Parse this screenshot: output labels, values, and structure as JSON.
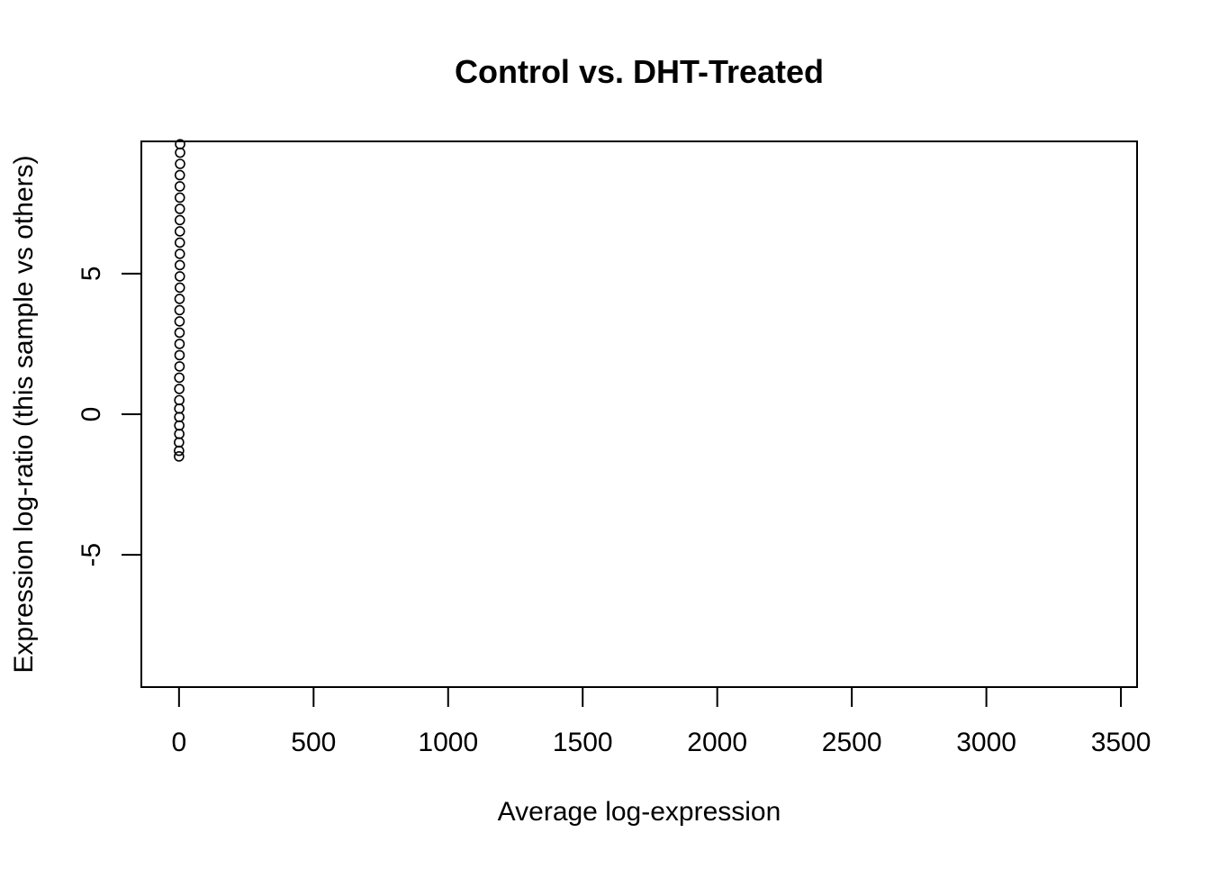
{
  "chart_data": {
    "type": "scatter",
    "title": "Control vs. DHT-Treated",
    "xlabel": "Average log-expression",
    "ylabel": "Expression log-ratio (this sample vs others)",
    "xlim": [
      -140,
      3560
    ],
    "ylim": [
      -9.7,
      9.7
    ],
    "x_ticks": [
      0,
      500,
      1000,
      1500,
      2000,
      2500,
      3000,
      3500
    ],
    "x_tick_labels": [
      "0",
      "500",
      "1000",
      "1500",
      "2000",
      "2500",
      "3000",
      "3500"
    ],
    "y_ticks": [
      -5,
      0,
      5
    ],
    "y_tick_labels": [
      "-5",
      "0",
      "5"
    ],
    "grid": false,
    "legend": "none",
    "series": [
      {
        "color": "#000000",
        "points": [
          {
            "x": 0,
            "y": -1.5
          },
          {
            "x": 0,
            "y": -1.3
          },
          {
            "x": 0,
            "y": -1.0
          },
          {
            "x": 1,
            "y": -0.7
          },
          {
            "x": 1,
            "y": -0.4
          },
          {
            "x": 1,
            "y": -0.1
          },
          {
            "x": 1,
            "y": 0.2
          },
          {
            "x": 1,
            "y": 0.5
          },
          {
            "x": 1,
            "y": 0.9
          },
          {
            "x": 1,
            "y": 1.3
          },
          {
            "x": 2,
            "y": 1.7
          },
          {
            "x": 2,
            "y": 2.1
          },
          {
            "x": 2,
            "y": 2.5
          },
          {
            "x": 2,
            "y": 2.9
          },
          {
            "x": 2,
            "y": 3.3
          },
          {
            "x": 2,
            "y": 3.7
          },
          {
            "x": 2,
            "y": 4.1
          },
          {
            "x": 3,
            "y": 4.5
          },
          {
            "x": 3,
            "y": 4.9
          },
          {
            "x": 3,
            "y": 5.3
          },
          {
            "x": 3,
            "y": 5.7
          },
          {
            "x": 3,
            "y": 6.1
          },
          {
            "x": 3,
            "y": 6.5
          },
          {
            "x": 3,
            "y": 6.9
          },
          {
            "x": 3,
            "y": 7.3
          },
          {
            "x": 3,
            "y": 7.7
          },
          {
            "x": 3,
            "y": 8.1
          },
          {
            "x": 3,
            "y": 8.5
          },
          {
            "x": 4,
            "y": 8.9
          },
          {
            "x": 4,
            "y": 9.3
          },
          {
            "x": 4,
            "y": 9.6
          }
        ]
      }
    ]
  }
}
